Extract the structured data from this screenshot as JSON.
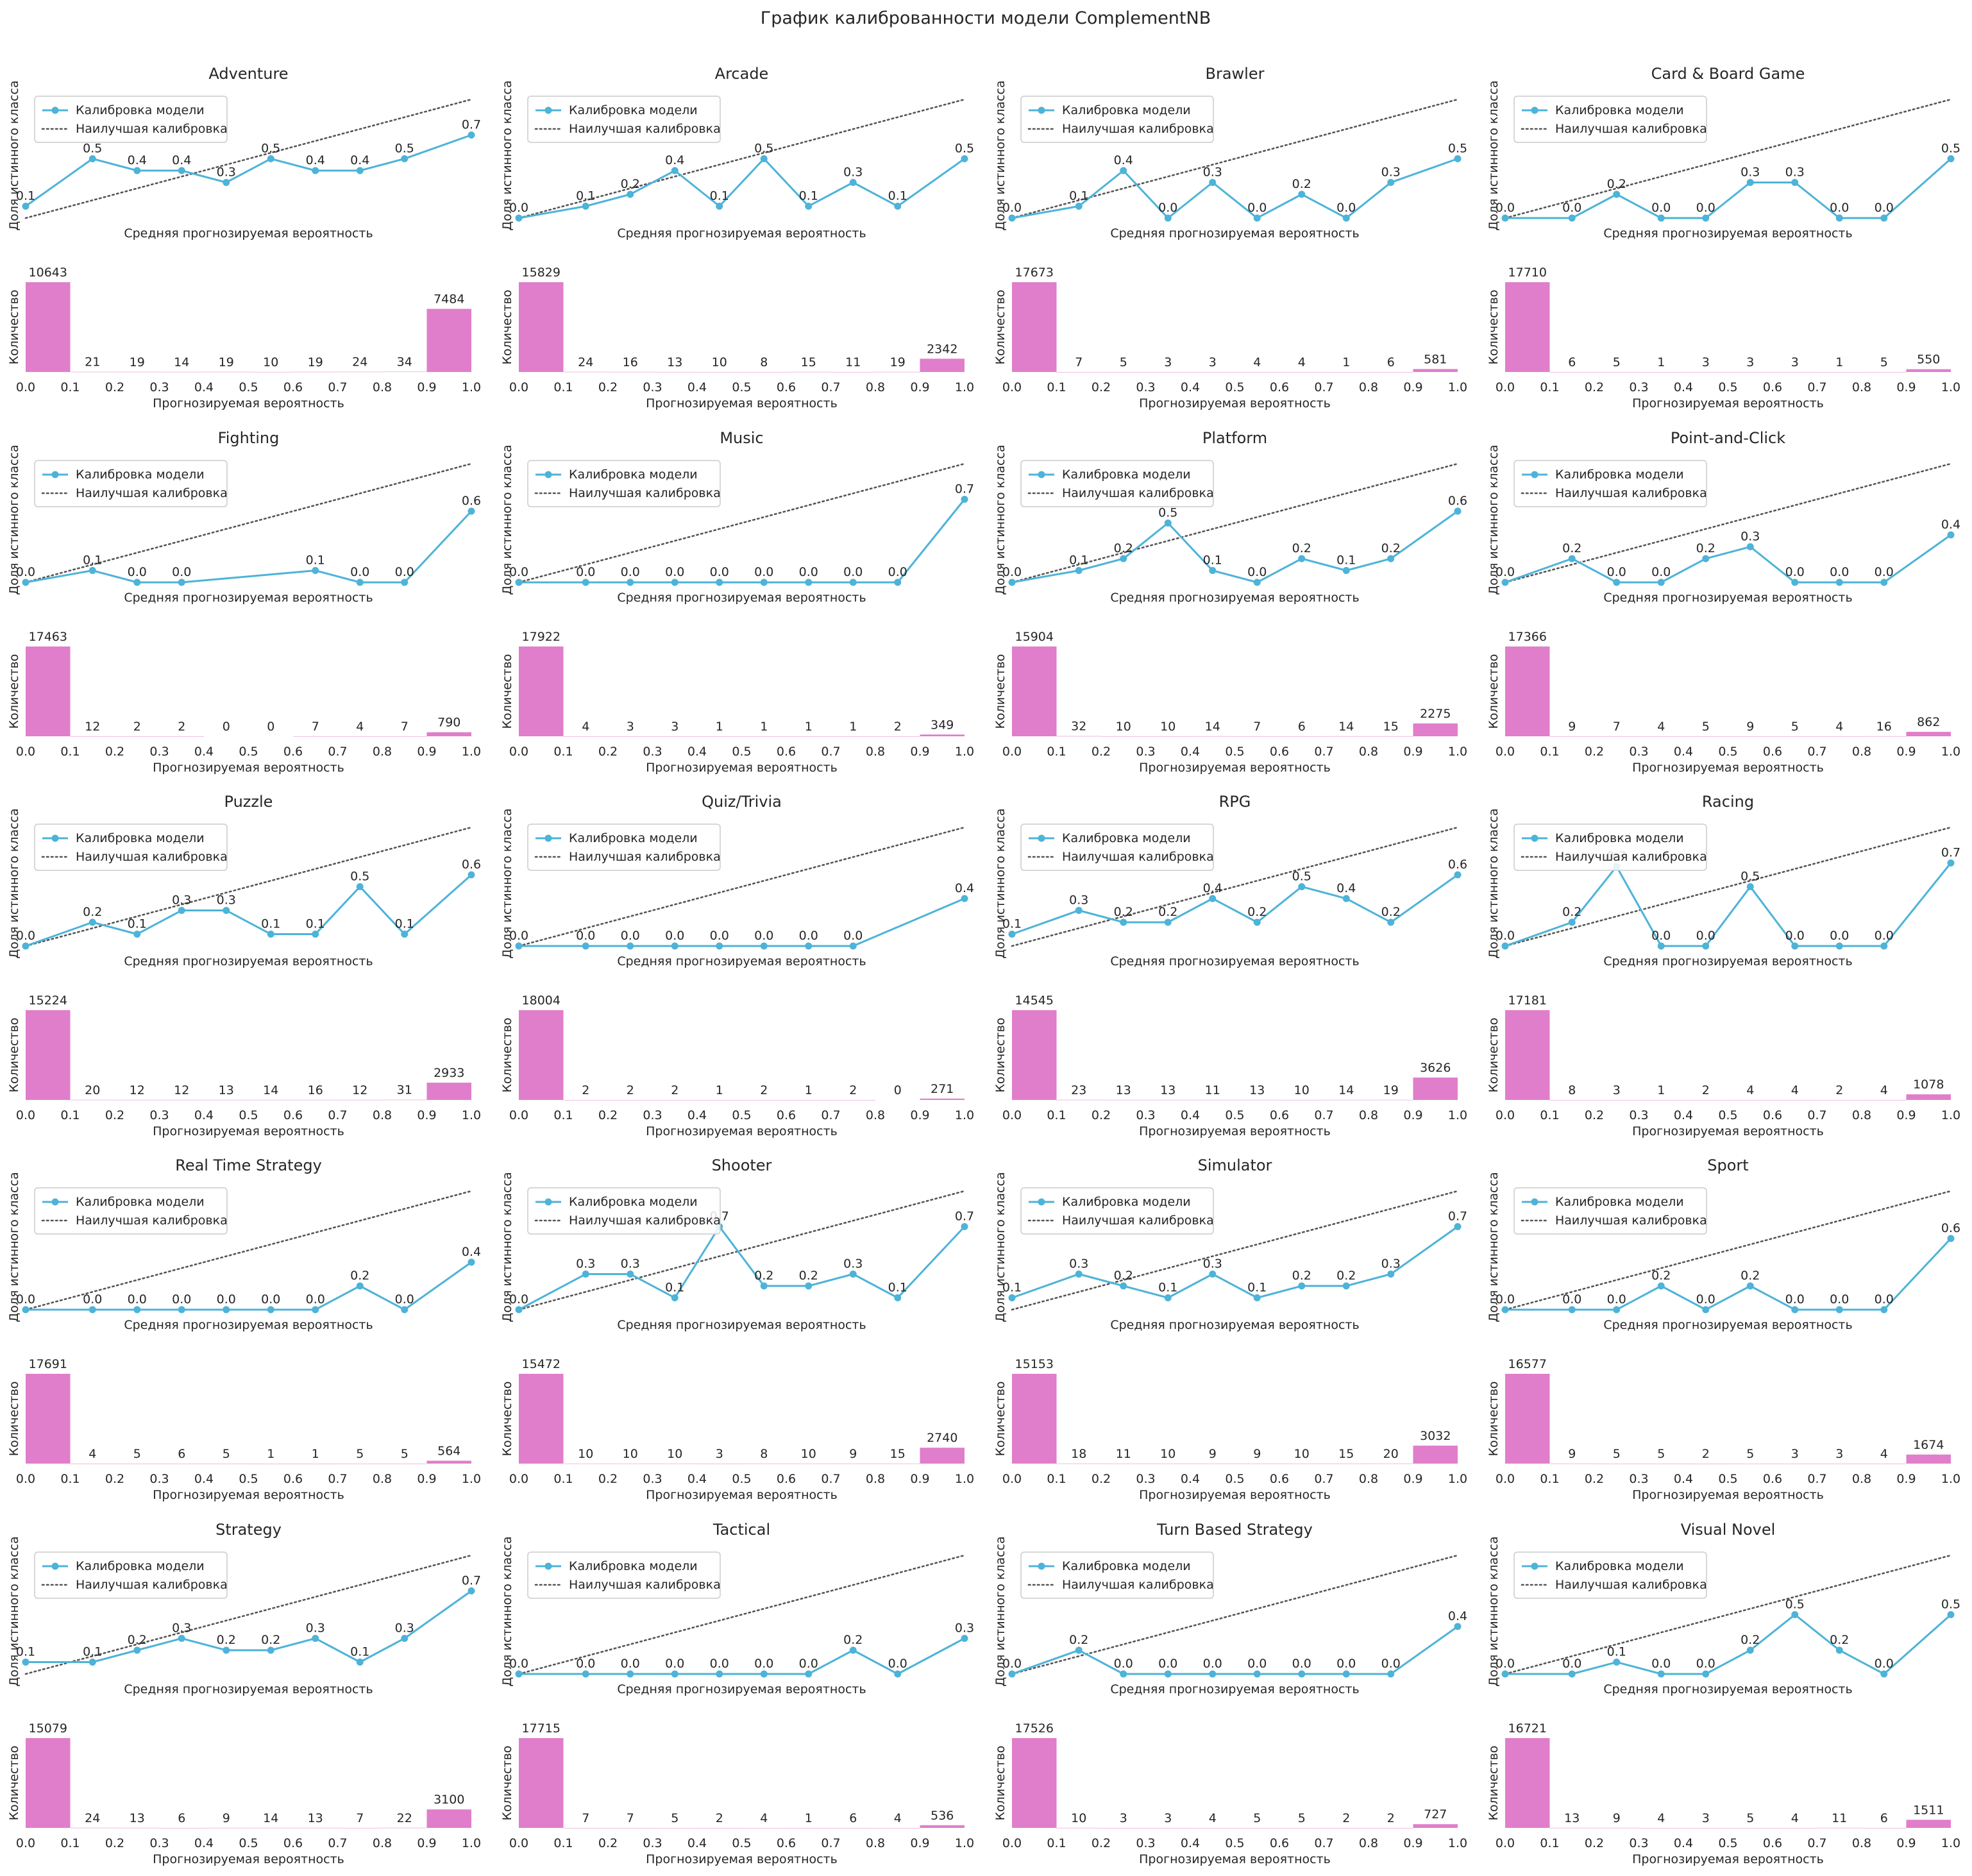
{
  "figure_title": "График калиброванности модели ComplementNB",
  "labels": {
    "calib_xlabel": "Средняя прогнозируемая вероятность",
    "calib_ylabel": "Доля истинного класса",
    "hist_xlabel": "Прогнозируемая вероятность",
    "hist_ylabel": "Количество",
    "legend_model": "Калибровка модели",
    "legend_best": "Наилучшая калибровка"
  },
  "colors": {
    "calibration_line": "#4db3d8",
    "perfect_line": "#555555",
    "histogram_bar": "#e07ecb"
  },
  "chart_data": [
    {
      "type": "line",
      "title": "Adventure",
      "x": [
        0.0,
        0.15,
        0.25,
        0.35,
        0.45,
        0.55,
        0.65,
        0.75,
        0.85,
        1.0
      ],
      "y": [
        0.1,
        0.5,
        0.4,
        0.4,
        0.3,
        0.5,
        0.4,
        0.4,
        0.5,
        0.7
      ],
      "hist_type": "bar",
      "hist_counts": [
        10643,
        21,
        19,
        14,
        19,
        10,
        19,
        24,
        34,
        7484
      ],
      "xlim": [
        0,
        1
      ],
      "legend": "upper-left",
      "grid": false
    },
    {
      "type": "line",
      "title": "Arcade",
      "x": [
        0.0,
        0.15,
        0.25,
        0.35,
        0.45,
        0.55,
        0.65,
        0.75,
        0.85,
        1.0
      ],
      "y": [
        0.0,
        0.1,
        0.2,
        0.4,
        0.1,
        0.5,
        0.1,
        0.3,
        0.1,
        0.5
      ],
      "hist_type": "bar",
      "hist_counts": [
        15829,
        24,
        16,
        13,
        10,
        8,
        15,
        11,
        19,
        2342
      ],
      "xlim": [
        0,
        1
      ],
      "legend": "upper-left",
      "grid": false
    },
    {
      "type": "line",
      "title": "Brawler",
      "x": [
        0.0,
        0.15,
        0.25,
        0.35,
        0.45,
        0.55,
        0.65,
        0.75,
        0.85,
        1.0
      ],
      "y": [
        0.0,
        0.1,
        0.4,
        0.0,
        0.3,
        0.0,
        0.2,
        0.0,
        0.3,
        0.5
      ],
      "hist_type": "bar",
      "hist_counts": [
        17673,
        7,
        5,
        3,
        3,
        4,
        4,
        1,
        6,
        581
      ],
      "xlim": [
        0,
        1
      ],
      "legend": "upper-left",
      "grid": false
    },
    {
      "type": "line",
      "title": "Card & Board Game",
      "x": [
        0.0,
        0.15,
        0.25,
        0.35,
        0.45,
        0.55,
        0.65,
        0.75,
        0.85,
        1.0
      ],
      "y": [
        0.0,
        0.0,
        0.2,
        0.0,
        0.0,
        0.3,
        0.3,
        0.0,
        0.0,
        0.5
      ],
      "hist_type": "bar",
      "hist_counts": [
        17710,
        6,
        5,
        1,
        3,
        3,
        3,
        1,
        5,
        550
      ],
      "xlim": [
        0,
        1
      ],
      "legend": "upper-left",
      "grid": false
    },
    {
      "type": "line",
      "title": "Fighting",
      "x": [
        0.0,
        0.15,
        0.25,
        0.35,
        0.65,
        0.75,
        0.85,
        1.0
      ],
      "y": [
        0.0,
        0.1,
        0.0,
        0.0,
        0.1,
        0.0,
        0.0,
        0.6
      ],
      "hist_type": "bar",
      "hist_counts": [
        17463,
        12,
        2,
        2,
        0,
        0,
        7,
        4,
        7,
        790
      ],
      "xlim": [
        0,
        1
      ],
      "legend": "upper-left",
      "grid": false
    },
    {
      "type": "line",
      "title": "Music",
      "x": [
        0.0,
        0.15,
        0.25,
        0.35,
        0.45,
        0.55,
        0.65,
        0.75,
        0.85,
        1.0
      ],
      "y": [
        0.0,
        0.0,
        0.0,
        0.0,
        0.0,
        0.0,
        0.0,
        0.0,
        0.0,
        0.7
      ],
      "hist_type": "bar",
      "hist_counts": [
        17922,
        4,
        3,
        3,
        1,
        1,
        1,
        1,
        2,
        349
      ],
      "xlim": [
        0,
        1
      ],
      "legend": "upper-left",
      "grid": false
    },
    {
      "type": "line",
      "title": "Platform",
      "x": [
        0.0,
        0.15,
        0.25,
        0.35,
        0.45,
        0.55,
        0.65,
        0.75,
        0.85,
        1.0
      ],
      "y": [
        0.0,
        0.1,
        0.2,
        0.5,
        0.1,
        0.0,
        0.2,
        0.1,
        0.2,
        0.6
      ],
      "hist_type": "bar",
      "hist_counts": [
        15904,
        32,
        10,
        10,
        14,
        7,
        6,
        14,
        15,
        2275
      ],
      "xlim": [
        0,
        1
      ],
      "legend": "upper-left",
      "grid": false
    },
    {
      "type": "line",
      "title": "Point-and-Click",
      "x": [
        0.0,
        0.15,
        0.25,
        0.35,
        0.45,
        0.55,
        0.65,
        0.75,
        0.85,
        1.0
      ],
      "y": [
        0.0,
        0.2,
        0.0,
        0.0,
        0.2,
        0.3,
        0.0,
        0.0,
        0.0,
        0.4
      ],
      "hist_type": "bar",
      "hist_counts": [
        17366,
        9,
        7,
        4,
        5,
        9,
        5,
        4,
        16,
        862
      ],
      "xlim": [
        0,
        1
      ],
      "legend": "upper-left",
      "grid": false
    },
    {
      "type": "line",
      "title": "Puzzle",
      "x": [
        0.0,
        0.15,
        0.25,
        0.35,
        0.45,
        0.55,
        0.65,
        0.75,
        0.85,
        1.0
      ],
      "y": [
        0.0,
        0.2,
        0.1,
        0.3,
        0.3,
        0.1,
        0.1,
        0.5,
        0.1,
        0.6
      ],
      "hist_type": "bar",
      "hist_counts": [
        15224,
        20,
        12,
        12,
        13,
        14,
        16,
        12,
        31,
        2933
      ],
      "xlim": [
        0,
        1
      ],
      "legend": "upper-left",
      "grid": false
    },
    {
      "type": "line",
      "title": "Quiz/Trivia",
      "x": [
        0.0,
        0.15,
        0.25,
        0.35,
        0.45,
        0.55,
        0.65,
        0.75,
        1.0
      ],
      "y": [
        0.0,
        0.0,
        0.0,
        0.0,
        0.0,
        0.0,
        0.0,
        0.0,
        0.4
      ],
      "hist_type": "bar",
      "hist_counts": [
        18004,
        2,
        2,
        2,
        1,
        2,
        1,
        2,
        0,
        271
      ],
      "xlim": [
        0,
        1
      ],
      "legend": "upper-left",
      "grid": false
    },
    {
      "type": "line",
      "title": "RPG",
      "x": [
        0.0,
        0.15,
        0.25,
        0.35,
        0.45,
        0.55,
        0.65,
        0.75,
        0.85,
        1.0
      ],
      "y": [
        0.1,
        0.3,
        0.2,
        0.2,
        0.4,
        0.2,
        0.5,
        0.4,
        0.2,
        0.6
      ],
      "hist_type": "bar",
      "hist_counts": [
        14545,
        23,
        13,
        13,
        11,
        13,
        10,
        14,
        19,
        3626
      ],
      "xlim": [
        0,
        1
      ],
      "legend": "upper-left",
      "grid": false
    },
    {
      "type": "line",
      "title": "Racing",
      "x": [
        0.0,
        0.15,
        0.25,
        0.35,
        0.45,
        0.55,
        0.65,
        0.75,
        0.85,
        1.0
      ],
      "y": [
        0.0,
        0.2,
        0.67,
        0.0,
        0.0,
        0.5,
        0.0,
        0.0,
        0.0,
        0.7
      ],
      "hist_type": "bar",
      "hist_counts": [
        17181,
        8,
        3,
        1,
        2,
        4,
        4,
        2,
        4,
        1078
      ],
      "xlim": [
        0,
        1
      ],
      "legend": "upper-left",
      "grid": false
    },
    {
      "type": "line",
      "title": "Real Time Strategy",
      "x": [
        0.0,
        0.15,
        0.25,
        0.35,
        0.45,
        0.55,
        0.65,
        0.75,
        0.85,
        1.0
      ],
      "y": [
        0.0,
        0.0,
        0.0,
        0.0,
        0.0,
        0.0,
        0.0,
        0.2,
        0.0,
        0.4
      ],
      "hist_type": "bar",
      "hist_counts": [
        17691,
        4,
        5,
        6,
        5,
        1,
        1,
        5,
        5,
        564
      ],
      "xlim": [
        0,
        1
      ],
      "legend": "upper-left",
      "grid": false
    },
    {
      "type": "line",
      "title": "Shooter",
      "x": [
        0.0,
        0.15,
        0.25,
        0.35,
        0.45,
        0.55,
        0.65,
        0.75,
        0.85,
        1.0
      ],
      "y": [
        0.0,
        0.3,
        0.3,
        0.1,
        0.7,
        0.2,
        0.2,
        0.3,
        0.1,
        0.7
      ],
      "hist_type": "bar",
      "hist_counts": [
        15472,
        10,
        10,
        10,
        3,
        8,
        10,
        9,
        15,
        2740
      ],
      "xlim": [
        0,
        1
      ],
      "legend": "upper-left",
      "grid": false
    },
    {
      "type": "line",
      "title": "Simulator",
      "x": [
        0.0,
        0.15,
        0.25,
        0.35,
        0.45,
        0.55,
        0.65,
        0.75,
        0.85,
        1.0
      ],
      "y": [
        0.1,
        0.3,
        0.2,
        0.1,
        0.3,
        0.1,
        0.2,
        0.2,
        0.3,
        0.7
      ],
      "hist_type": "bar",
      "hist_counts": [
        15153,
        18,
        11,
        10,
        9,
        9,
        10,
        15,
        20,
        3032
      ],
      "xlim": [
        0,
        1
      ],
      "legend": "upper-left",
      "grid": false
    },
    {
      "type": "line",
      "title": "Sport",
      "x": [
        0.0,
        0.15,
        0.25,
        0.35,
        0.45,
        0.55,
        0.65,
        0.75,
        0.85,
        1.0
      ],
      "y": [
        0.0,
        0.0,
        0.0,
        0.2,
        0.0,
        0.2,
        0.0,
        0.0,
        0.0,
        0.6
      ],
      "hist_type": "bar",
      "hist_counts": [
        16577,
        9,
        5,
        5,
        2,
        5,
        3,
        3,
        4,
        1674
      ],
      "xlim": [
        0,
        1
      ],
      "legend": "upper-left",
      "grid": false
    },
    {
      "type": "line",
      "title": "Strategy",
      "x": [
        0.0,
        0.15,
        0.25,
        0.35,
        0.45,
        0.55,
        0.65,
        0.75,
        0.85,
        1.0
      ],
      "y": [
        0.1,
        0.1,
        0.2,
        0.3,
        0.2,
        0.2,
        0.3,
        0.1,
        0.3,
        0.7
      ],
      "hist_type": "bar",
      "hist_counts": [
        15079,
        24,
        13,
        6,
        9,
        14,
        13,
        7,
        22,
        3100
      ],
      "xlim": [
        0,
        1
      ],
      "legend": "upper-left",
      "grid": false
    },
    {
      "type": "line",
      "title": "Tactical",
      "x": [
        0.0,
        0.15,
        0.25,
        0.35,
        0.45,
        0.55,
        0.65,
        0.75,
        0.85,
        1.0
      ],
      "y": [
        0.0,
        0.0,
        0.0,
        0.0,
        0.0,
        0.0,
        0.0,
        0.2,
        0.0,
        0.3
      ],
      "hist_type": "bar",
      "hist_counts": [
        17715,
        7,
        7,
        5,
        2,
        4,
        1,
        6,
        4,
        536
      ],
      "xlim": [
        0,
        1
      ],
      "legend": "upper-left",
      "grid": false
    },
    {
      "type": "line",
      "title": "Turn Based Strategy",
      "x": [
        0.0,
        0.15,
        0.25,
        0.35,
        0.45,
        0.55,
        0.65,
        0.75,
        0.85,
        1.0
      ],
      "y": [
        0.0,
        0.2,
        0.0,
        0.0,
        0.0,
        0.0,
        0.0,
        0.0,
        0.0,
        0.4
      ],
      "hist_type": "bar",
      "hist_counts": [
        17526,
        10,
        3,
        3,
        4,
        5,
        5,
        2,
        2,
        727
      ],
      "xlim": [
        0,
        1
      ],
      "legend": "upper-left",
      "grid": false
    },
    {
      "type": "line",
      "title": "Visual Novel",
      "x": [
        0.0,
        0.15,
        0.25,
        0.35,
        0.45,
        0.55,
        0.65,
        0.75,
        0.85,
        1.0
      ],
      "y": [
        0.0,
        0.0,
        0.1,
        0.0,
        0.0,
        0.2,
        0.5,
        0.2,
        0.0,
        0.5
      ],
      "hist_type": "bar",
      "hist_counts": [
        16721,
        13,
        9,
        4,
        3,
        5,
        4,
        11,
        6,
        1511
      ],
      "xlim": [
        0,
        1
      ],
      "legend": "upper-left",
      "grid": false
    }
  ],
  "x_ticks": [
    "0.0",
    "0.1",
    "0.2",
    "0.3",
    "0.4",
    "0.5",
    "0.6",
    "0.7",
    "0.8",
    "0.9",
    "1.0"
  ]
}
